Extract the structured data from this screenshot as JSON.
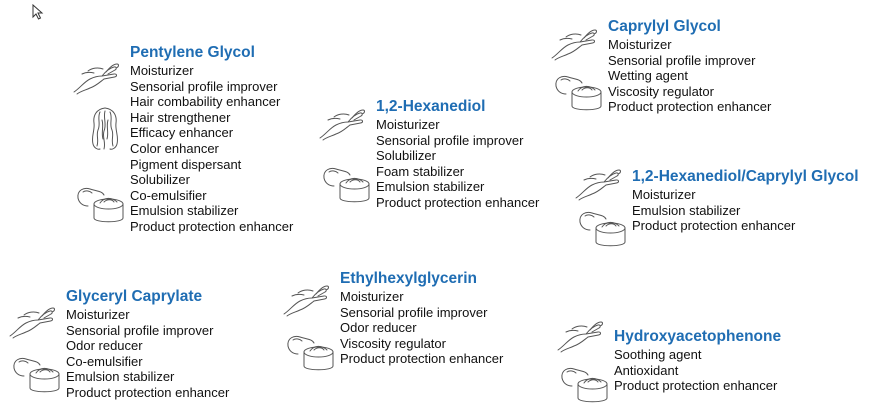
{
  "ingredients": {
    "pentylene_glycol": {
      "title": "Pentylene Glycol",
      "benefits": [
        "Moisturizer",
        "Sensorial profile improver",
        "Hair combability enhancer",
        "Hair strengthener",
        "Efficacy enhancer",
        "Color enhancer",
        "Pigment dispersant",
        "Solubilizer",
        "Co-emulsifier",
        "Emulsion stabilizer",
        "Product protection enhancer"
      ]
    },
    "hexanediol": {
      "title": "1,2-Hexanediol",
      "benefits": [
        "Moisturizer",
        "Sensorial profile improver",
        "Solubilizer",
        "Foam stabilizer",
        "Emulsion stabilizer",
        "Product protection enhancer"
      ]
    },
    "caprylyl_glycol": {
      "title": "Caprylyl Glycol",
      "benefits": [
        "Moisturizer",
        "Sensorial profile improver",
        "Wetting agent",
        "Viscosity regulator",
        "Product protection enhancer"
      ]
    },
    "hexanediol_caprylyl_glycol": {
      "title": "1,2-Hexanediol/Caprylyl Glycol",
      "benefits": [
        "Moisturizer",
        "Emulsion stabilizer",
        "Product protection enhancer"
      ]
    },
    "glyceryl_caprylate": {
      "title": "Glyceryl Caprylate",
      "benefits": [
        "Moisturizer",
        "Sensorial profile improver",
        "Odor reducer",
        "Co-emulsifier",
        "Emulsion stabilizer",
        "Product protection enhancer"
      ]
    },
    "ethylhexylglycerin": {
      "title": "Ethylhexylglycerin",
      "benefits": [
        "Moisturizer",
        "Sensorial profile improver",
        "Odor reducer",
        "Viscosity regulator",
        "Product protection enhancer"
      ]
    },
    "hydroxyacetophenone": {
      "title": "Hydroxyacetophenone",
      "benefits": [
        "Soothing agent",
        "Antioxidant",
        "Product protection enhancer"
      ]
    }
  },
  "colors": {
    "title": "#1f6db3",
    "text": "#111111",
    "icon_stroke": "#555555"
  },
  "icons": [
    "hand-icon",
    "hair-icon",
    "cream-jar-icon",
    "cursor-icon"
  ]
}
